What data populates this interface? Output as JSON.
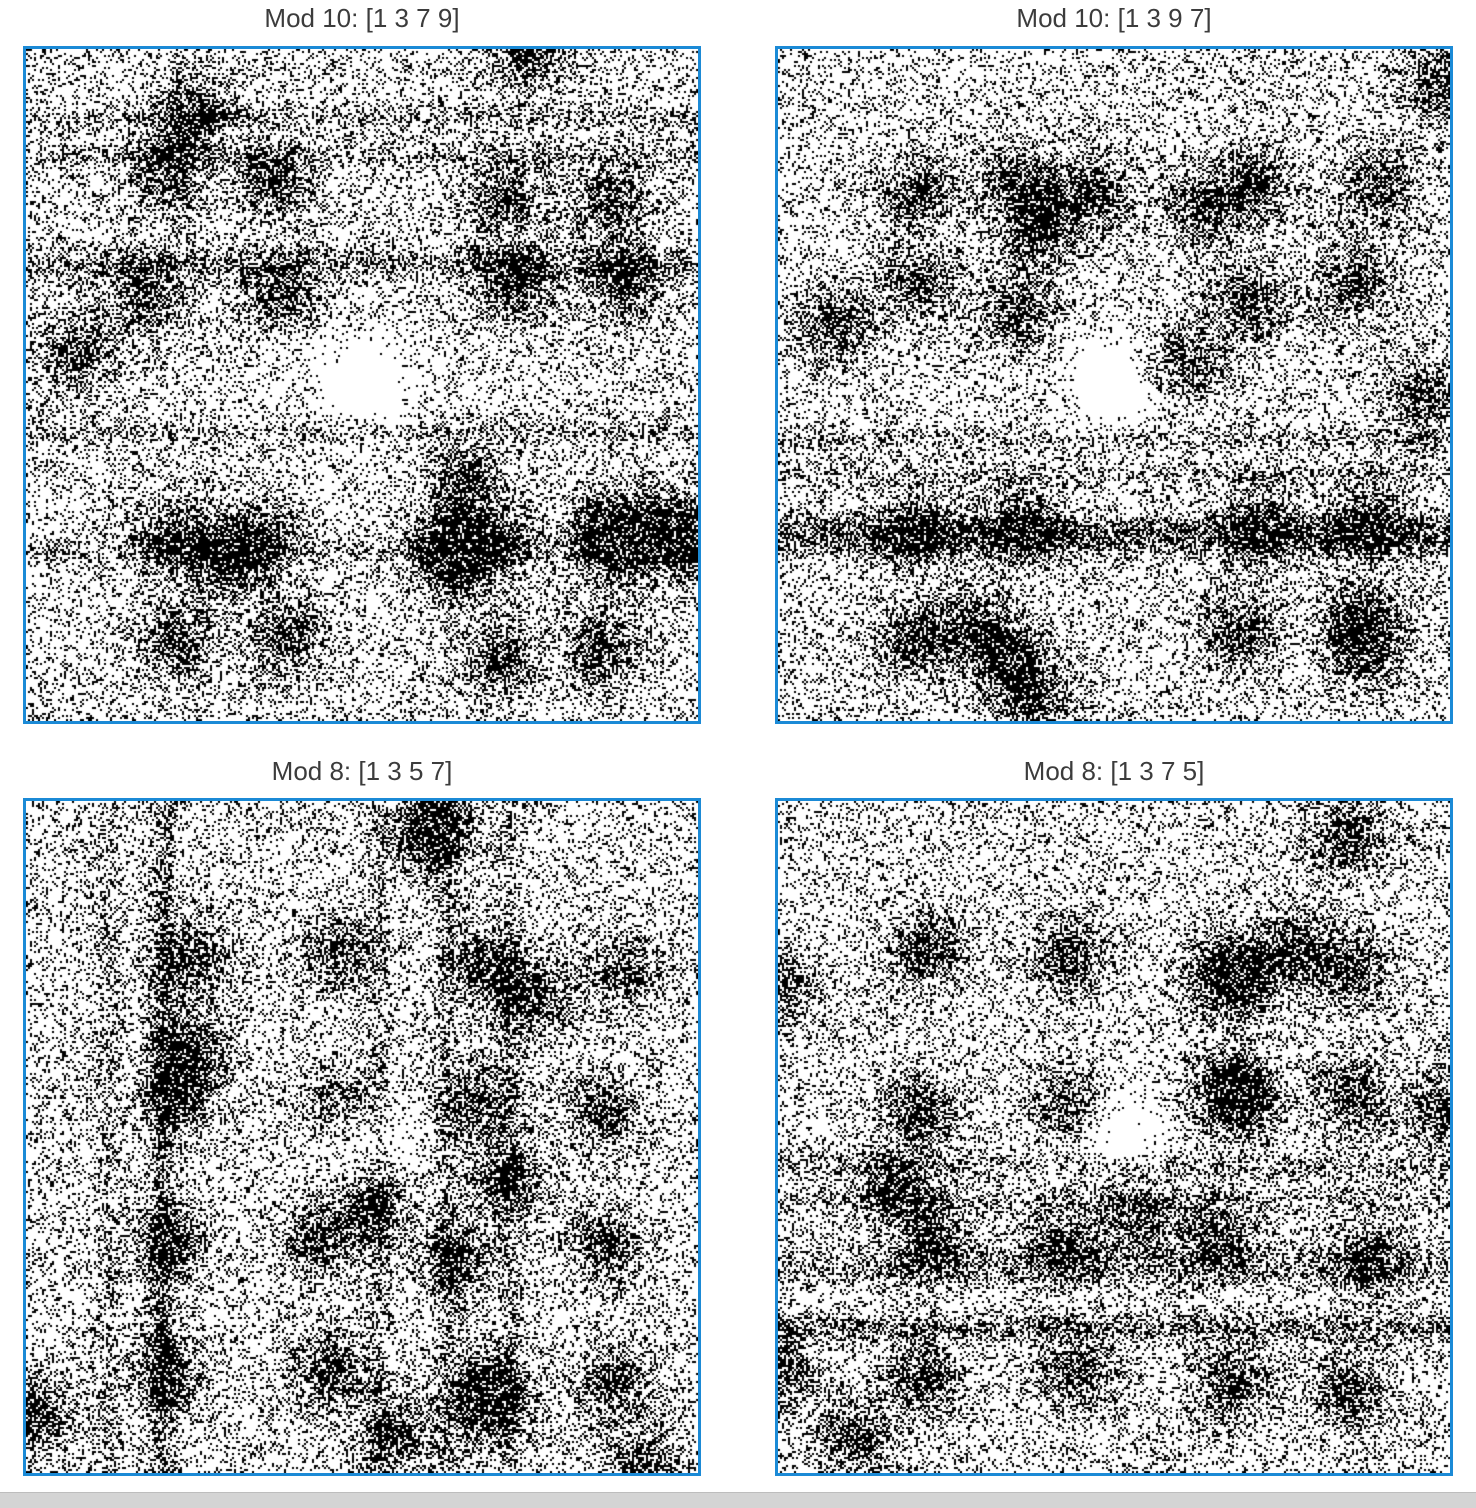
{
  "chart_data": [
    {
      "type": "scatter",
      "title": "Mod 10: [1 3 7 9]",
      "modulus": 10,
      "digit_sequence": [
        1,
        3,
        7,
        9
      ]
    },
    {
      "type": "scatter",
      "title": "Mod 10: [1 3 9 7]",
      "modulus": 10,
      "digit_sequence": [
        1,
        3,
        9,
        7
      ]
    },
    {
      "type": "scatter",
      "title": "Mod 8: [1 3 5 7]",
      "modulus": 8,
      "digit_sequence": [
        1,
        3,
        5,
        7
      ]
    },
    {
      "type": "scatter",
      "title": "Mod 8: [1 3 7 5]",
      "modulus": 8,
      "digit_sequence": [
        1,
        3,
        7,
        5
      ]
    }
  ],
  "colors": {
    "frame": "#1b8ad6",
    "points": "#000000",
    "title_text": "#3c3c3c"
  }
}
